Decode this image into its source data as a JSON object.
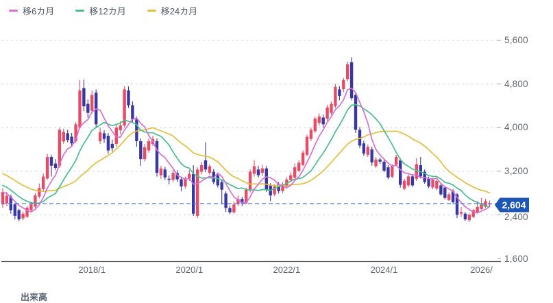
{
  "legend": {
    "items": [
      {
        "label": "移6カ月",
        "window": 6,
        "color": "#d96fd4"
      },
      {
        "label": "移12カ月",
        "window": 12,
        "color": "#46c08a"
      },
      {
        "label": "移24カ月",
        "window": 24,
        "color": "#e3bf3d"
      }
    ]
  },
  "price_badge": {
    "value": "2,604",
    "color": "#1c57b5"
  },
  "volume_label": "出来高",
  "colors": {
    "up_candle": "#e74c67",
    "down_candle": "#3937a3",
    "grid": "#ccd6e2",
    "current_line": "#5b7fd9",
    "axis_line": "#54585c",
    "tick": "#9aa3ad"
  },
  "chart_data": {
    "type": "candlestick",
    "title": "",
    "xlabel": "",
    "ylabel": "",
    "ylim": [
      1560,
      5760
    ],
    "grid": "dashed horizontal",
    "legend_position": "top-left",
    "current_price": 2604,
    "y_ticks": [
      {
        "label": "5,600",
        "value": 5600
      },
      {
        "label": "4,800",
        "value": 4800
      },
      {
        "label": "4,000",
        "value": 4000
      },
      {
        "label": "3,200",
        "value": 3200
      },
      {
        "label": "2,400",
        "value": 2400
      },
      {
        "label": "1,600",
        "value": 1600
      }
    ],
    "x_ticks": [
      {
        "label": "2018/1",
        "index": 22
      },
      {
        "label": "2020/1",
        "index": 46
      },
      {
        "label": "2022/1",
        "index": 70
      },
      {
        "label": "2024/1",
        "index": 94
      },
      {
        "label": "2026/",
        "index": 118
      }
    ],
    "ma_windows": [
      6,
      12,
      24
    ],
    "preroll_closes": [
      3600,
      3580,
      3550,
      3500,
      3450,
      3420,
      3380,
      3350,
      3300,
      3280,
      3250,
      3200,
      3180,
      3150,
      3120,
      3080,
      3050,
      3000,
      2960,
      2920,
      2880,
      2840,
      2760,
      2680
    ],
    "candles": [
      [
        2590,
        2890,
        2530,
        2820
      ],
      [
        2610,
        2820,
        2560,
        2750
      ],
      [
        2735,
        2770,
        2420,
        2485
      ],
      [
        2590,
        2620,
        2315,
        2380
      ],
      [
        2485,
        2510,
        2280,
        2315
      ],
      [
        2335,
        2460,
        2300,
        2420
      ],
      [
        2365,
        2560,
        2340,
        2530
      ],
      [
        2485,
        2640,
        2450,
        2590
      ],
      [
        2550,
        2800,
        2520,
        2755
      ],
      [
        2735,
        2975,
        2700,
        2890
      ],
      [
        2870,
        3160,
        2840,
        3100
      ],
      [
        3065,
        3520,
        3040,
        3460
      ],
      [
        3460,
        3500,
        3100,
        3300
      ],
      [
        3340,
        3420,
        3220,
        3260
      ],
      [
        3300,
        4000,
        3260,
        3960
      ],
      [
        3745,
        3980,
        3700,
        3920
      ],
      [
        3895,
        3960,
        3730,
        3770
      ],
      [
        3833,
        3900,
        3650,
        3710
      ],
      [
        3750,
        4100,
        3720,
        4060
      ],
      [
        4000,
        4870,
        3980,
        4680
      ],
      [
        4725,
        4880,
        4300,
        4390
      ],
      [
        4435,
        4520,
        4180,
        4270
      ],
      [
        4310,
        4680,
        4260,
        4600
      ],
      [
        4640,
        4700,
        4000,
        4060
      ],
      [
        3750,
        4000,
        3700,
        3915
      ],
      [
        3895,
        3950,
        3720,
        3790
      ],
      [
        3850,
        3900,
        3520,
        3580
      ],
      [
        3700,
        3780,
        3560,
        3620
      ],
      [
        3700,
        4050,
        3650,
        4000
      ],
      [
        3950,
        4120,
        3880,
        4040
      ],
      [
        4040,
        4760,
        4000,
        4700
      ],
      [
        4680,
        4755,
        4360,
        4410
      ],
      [
        4410,
        4480,
        4100,
        4150
      ],
      [
        4150,
        4200,
        3650,
        3750
      ],
      [
        3750,
        3800,
        3300,
        3420
      ],
      [
        3420,
        3700,
        3380,
        3640
      ],
      [
        3580,
        3800,
        3540,
        3750
      ],
      [
        3700,
        3850,
        3660,
        3790
      ],
      [
        3750,
        3800,
        3100,
        3170
      ],
      [
        3125,
        3300,
        3060,
        3250
      ],
      [
        3230,
        3280,
        3040,
        3085
      ],
      [
        3060,
        3120,
        2960,
        3040
      ],
      [
        3040,
        3220,
        3000,
        3170
      ],
      [
        3170,
        3220,
        3000,
        3050
      ],
      [
        3050,
        3100,
        2830,
        2920
      ],
      [
        2920,
        3100,
        2880,
        3060
      ],
      [
        3060,
        3220,
        3020,
        3150
      ],
      [
        3150,
        3310,
        2380,
        2420
      ],
      [
        2380,
        3270,
        2340,
        3230
      ],
      [
        3190,
        3370,
        3140,
        3310
      ],
      [
        3400,
        3730,
        3180,
        3230
      ],
      [
        3170,
        3330,
        3130,
        3290
      ],
      [
        3190,
        3240,
        2960,
        3000
      ],
      [
        3125,
        3170,
        2900,
        2940
      ],
      [
        3000,
        3050,
        2590,
        2860
      ],
      [
        2790,
        2830,
        2450,
        2525
      ],
      [
        2525,
        2570,
        2410,
        2445
      ],
      [
        2445,
        2640,
        2420,
        2590
      ],
      [
        2590,
        2760,
        2560,
        2690
      ],
      [
        2690,
        2730,
        2560,
        2610
      ],
      [
        2610,
        2900,
        2590,
        2860
      ],
      [
        2840,
        3230,
        2810,
        3190
      ],
      [
        3150,
        3400,
        3100,
        3290
      ],
      [
        3230,
        3300,
        3080,
        3125
      ],
      [
        3170,
        3320,
        3110,
        3250
      ],
      [
        3250,
        3300,
        2820,
        2860
      ],
      [
        2940,
        2980,
        2650,
        2755
      ],
      [
        2775,
        2960,
        2740,
        2920
      ],
      [
        2960,
        3000,
        2790,
        2835
      ],
      [
        2835,
        3000,
        2800,
        2960
      ],
      [
        2920,
        3090,
        2880,
        3045
      ],
      [
        3040,
        3180,
        3000,
        3125
      ],
      [
        3080,
        3340,
        3040,
        3270
      ],
      [
        3210,
        3400,
        3180,
        3355
      ],
      [
        3315,
        3580,
        3290,
        3540
      ],
      [
        3500,
        3870,
        3470,
        3830
      ],
      [
        3790,
        4000,
        3750,
        3960
      ],
      [
        3935,
        4200,
        3900,
        4165
      ],
      [
        4085,
        4260,
        4040,
        4205
      ],
      [
        4185,
        4240,
        4000,
        4060
      ],
      [
        4165,
        4420,
        4120,
        4370
      ],
      [
        4270,
        4480,
        4230,
        4435
      ],
      [
        4395,
        4800,
        4360,
        4745
      ],
      [
        4700,
        4760,
        4500,
        4580
      ],
      [
        4705,
        4910,
        4650,
        4870
      ],
      [
        4890,
        5215,
        4850,
        5160
      ],
      [
        5200,
        5290,
        4500,
        4540
      ],
      [
        4600,
        4650,
        3900,
        3960
      ],
      [
        3960,
        4010,
        3620,
        3670
      ],
      [
        3710,
        3760,
        3480,
        3525
      ],
      [
        3500,
        3690,
        3460,
        3645
      ],
      [
        3600,
        3650,
        3300,
        3360
      ],
      [
        3290,
        3460,
        3260,
        3415
      ],
      [
        3415,
        3450,
        3330,
        3375
      ],
      [
        3375,
        3420,
        3180,
        3210
      ],
      [
        3270,
        3310,
        3050,
        3085
      ],
      [
        3100,
        3330,
        3070,
        3300
      ],
      [
        3315,
        3500,
        3290,
        3460
      ],
      [
        3400,
        3440,
        2900,
        2950
      ],
      [
        2880,
        3060,
        2850,
        3025
      ],
      [
        2940,
        3140,
        2910,
        3105
      ],
      [
        3105,
        3150,
        2910,
        2940
      ],
      [
        3060,
        3440,
        3020,
        3330
      ],
      [
        3310,
        3460,
        3080,
        3105
      ],
      [
        3190,
        3230,
        2970,
        3000
      ],
      [
        3065,
        3100,
        2890,
        2920
      ],
      [
        2900,
        3080,
        2870,
        3045
      ],
      [
        2880,
        3050,
        2850,
        3020
      ],
      [
        2940,
        2980,
        2750,
        2775
      ],
      [
        2900,
        2930,
        2680,
        2710
      ],
      [
        2670,
        2810,
        2650,
        2775
      ],
      [
        2835,
        2870,
        2600,
        2630
      ],
      [
        2775,
        2800,
        2340,
        2400
      ],
      [
        2420,
        2540,
        2360,
        2450
      ],
      [
        2420,
        2450,
        2290,
        2315
      ],
      [
        2300,
        2430,
        2270,
        2400
      ],
      [
        2360,
        2510,
        2340,
        2485
      ],
      [
        2445,
        2650,
        2430,
        2545
      ],
      [
        2505,
        2710,
        2490,
        2610
      ],
      [
        2545,
        2690,
        2530,
        2650
      ],
      [
        2590,
        2660,
        2540,
        2604
      ]
    ]
  }
}
